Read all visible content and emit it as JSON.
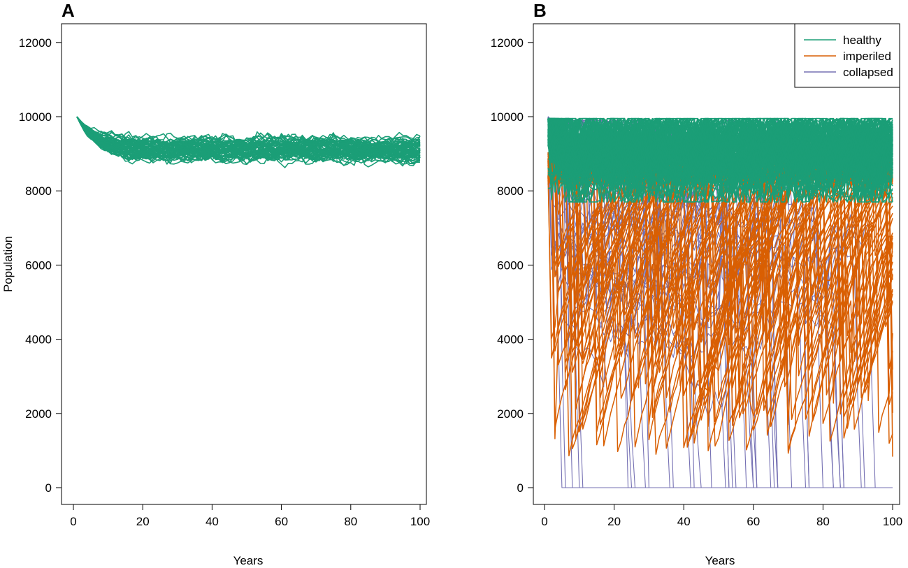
{
  "colors": {
    "healthy": "#1b9e77",
    "imperiled": "#d95f02",
    "collapsed": "#7570b3"
  },
  "chart_data": [
    {
      "type": "line",
      "panel": "A",
      "xlabel": "Years",
      "ylabel": "Population",
      "xlim": [
        0,
        100
      ],
      "ylim": [
        0,
        12000
      ],
      "xticks": [
        0,
        20,
        40,
        60,
        80,
        100
      ],
      "yticks": [
        0,
        2000,
        4000,
        6000,
        8000,
        10000,
        12000
      ],
      "description": "Ensemble of simulated population trajectories; all healthy, declining from 10000 to an equilibrium band of roughly 8800-9400.",
      "series": [
        {
          "name": "healthy",
          "start": 10000,
          "mean_equilibrium": 9100,
          "band": [
            8750,
            9400
          ],
          "count": 60
        }
      ]
    },
    {
      "type": "line",
      "panel": "B",
      "xlabel": "Years",
      "ylabel": "",
      "xlim": [
        0,
        100
      ],
      "ylim": [
        0,
        12000
      ],
      "xticks": [
        0,
        20,
        40,
        60,
        80,
        100
      ],
      "yticks": [
        0,
        2000,
        4000,
        6000,
        8000,
        10000,
        12000
      ],
      "legend": {
        "position": "top-right",
        "entries": [
          "healthy",
          "imperiled",
          "collapsed"
        ]
      },
      "description": "Ensemble of trajectories with stochastic crashes: healthy band ~7800-9900, imperiled trajectories crash then recover, collapsed trajectories fall to 0.",
      "series": [
        {
          "name": "healthy",
          "band": [
            7700,
            9950
          ],
          "count": 120
        },
        {
          "name": "imperiled",
          "recover_to": 9000,
          "count": 70
        },
        {
          "name": "collapsed",
          "final": 0,
          "count": 45
        }
      ]
    }
  ]
}
